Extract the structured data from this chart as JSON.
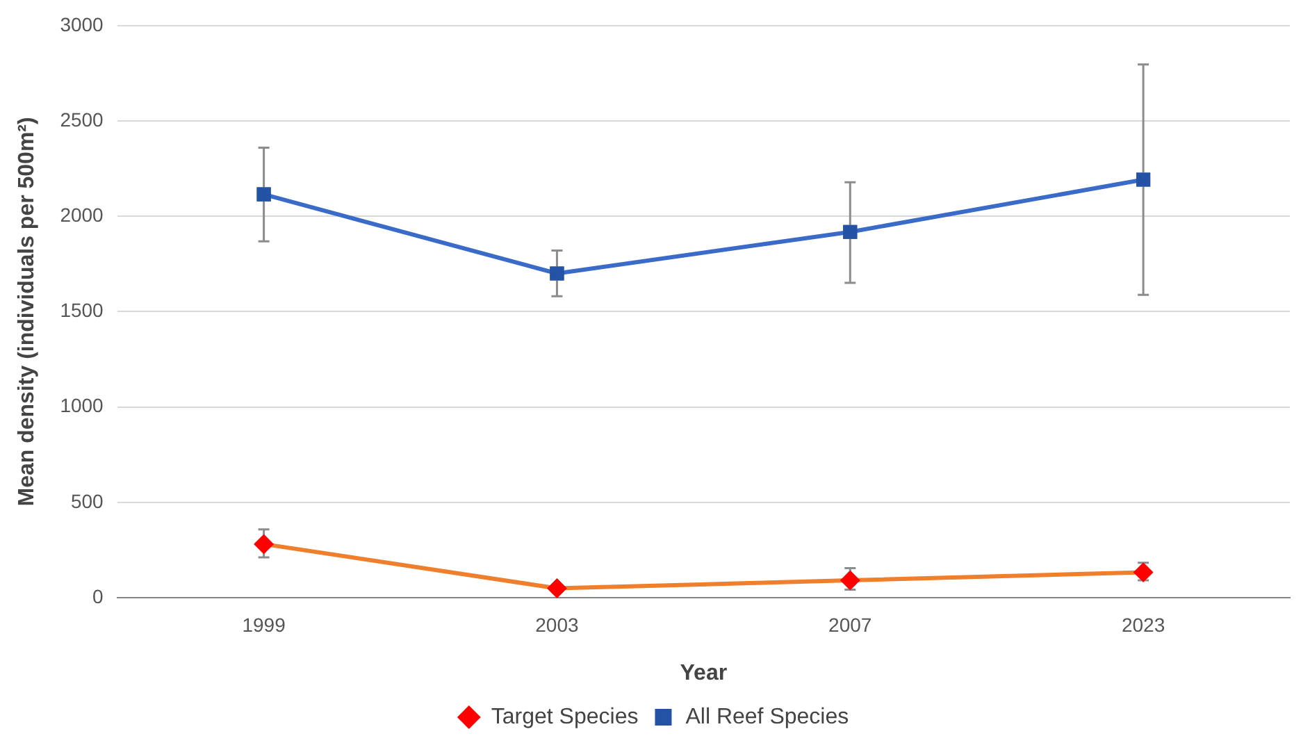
{
  "chart_data": {
    "type": "line",
    "xlabel": "Year",
    "ylabel": "Mean density (individuals per 500m²)",
    "categories": [
      "1999",
      "2003",
      "2007",
      "2023"
    ],
    "series": [
      {
        "name": "Target Species",
        "color": "#f07f2d",
        "colors": [
          "#ff0000",
          "#ff0000",
          "#ff0000",
          "#ff0000"
        ],
        "marker": "diamond",
        "values": [
          281,
          49,
          91,
          133
        ],
        "errors": [
          [
            211,
            358
          ],
          null,
          [
            42,
            155
          ],
          [
            91,
            183
          ]
        ]
      },
      {
        "name": "All Reef Species",
        "color": "#3a6bc8",
        "colors": [
          "#2452a4",
          "#2452a4",
          "#2452a4",
          "#2452a4"
        ],
        "marker": "square",
        "values": [
          2115,
          1700,
          1918,
          2192
        ],
        "errors": [
          [
            1869,
            2360
          ],
          [
            1581,
            1820
          ],
          [
            1651,
            2178
          ],
          [
            1588,
            2796
          ]
        ]
      }
    ],
    "ylim": [
      0,
      3000
    ],
    "yticks": [
      0,
      500,
      1000,
      1500,
      2000,
      2500,
      3000
    ],
    "grid": "y",
    "legend": "bottom"
  }
}
